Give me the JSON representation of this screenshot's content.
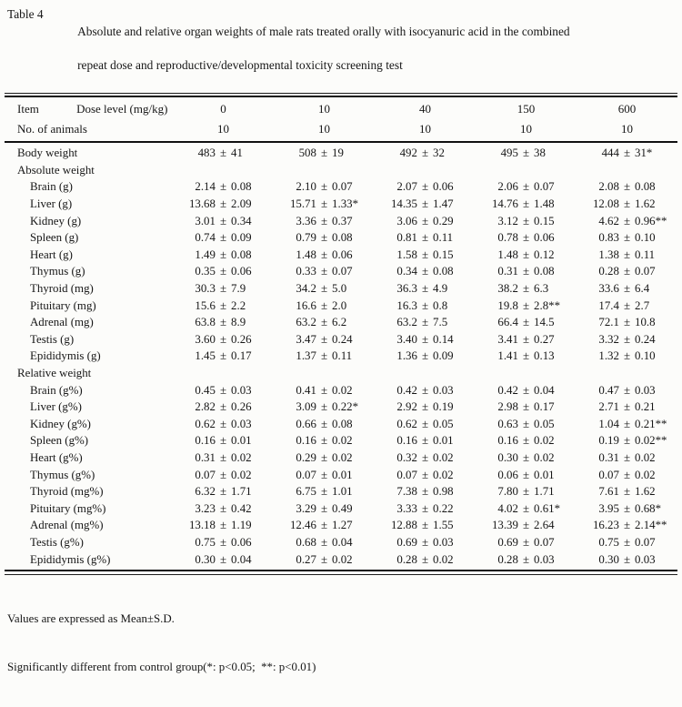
{
  "caption": {
    "label": "Table 4",
    "line1": "Absolute and relative organ weights of male rats treated orally with isocyanuric acid in the combined",
    "line2": "repeat dose and reproductive/developmental toxicity screening test"
  },
  "symbols": {
    "pm": "±"
  },
  "header": {
    "item_label": "Item",
    "dose_label": "Dose level (mg/kg)",
    "doses": [
      "0",
      "10",
      "40",
      "150",
      "600"
    ],
    "animals_label": "No. of animals",
    "animals_counts": [
      "10",
      "10",
      "10",
      "10",
      "10"
    ]
  },
  "rows": [
    {
      "label": "Body weight",
      "indent": 0,
      "values": [
        [
          "483",
          "41"
        ],
        [
          "508",
          "19"
        ],
        [
          "492",
          "32"
        ],
        [
          "495",
          "38"
        ],
        [
          "444",
          "31*"
        ]
      ]
    },
    {
      "label": "Absolute weight",
      "indent": 0,
      "section": true,
      "values": []
    },
    {
      "label": "Brain (g)",
      "indent": 1,
      "values": [
        [
          "2.14",
          "0.08"
        ],
        [
          "2.10",
          "0.07"
        ],
        [
          "2.07",
          "0.06"
        ],
        [
          "2.06",
          "0.07"
        ],
        [
          "2.08",
          "0.08"
        ]
      ]
    },
    {
      "label": "Liver (g)",
      "indent": 1,
      "values": [
        [
          "13.68",
          "2.09"
        ],
        [
          "15.71",
          "1.33*"
        ],
        [
          "14.35",
          "1.47"
        ],
        [
          "14.76",
          "1.48"
        ],
        [
          "12.08",
          "1.62"
        ]
      ]
    },
    {
      "label": "Kidney (g)",
      "indent": 1,
      "values": [
        [
          "3.01",
          "0.34"
        ],
        [
          "3.36",
          "0.37"
        ],
        [
          "3.06",
          "0.29"
        ],
        [
          "3.12",
          "0.15"
        ],
        [
          "4.62",
          "0.96**"
        ]
      ]
    },
    {
      "label": "Spleen (g)",
      "indent": 1,
      "values": [
        [
          "0.74",
          "0.09"
        ],
        [
          "0.79",
          "0.08"
        ],
        [
          "0.81",
          "0.11"
        ],
        [
          "0.78",
          "0.06"
        ],
        [
          "0.83",
          "0.10"
        ]
      ]
    },
    {
      "label": "Heart (g)",
      "indent": 1,
      "values": [
        [
          "1.49",
          "0.08"
        ],
        [
          "1.48",
          "0.06"
        ],
        [
          "1.58",
          "0.15"
        ],
        [
          "1.48",
          "0.12"
        ],
        [
          "1.38",
          "0.11"
        ]
      ]
    },
    {
      "label": "Thymus (g)",
      "indent": 1,
      "values": [
        [
          "0.35",
          "0.06"
        ],
        [
          "0.33",
          "0.07"
        ],
        [
          "0.34",
          "0.08"
        ],
        [
          "0.31",
          "0.08"
        ],
        [
          "0.28",
          "0.07"
        ]
      ]
    },
    {
      "label": "Thyroid (mg)",
      "indent": 1,
      "values": [
        [
          "30.3",
          "7.9"
        ],
        [
          "34.2",
          "5.0"
        ],
        [
          "36.3",
          "4.9"
        ],
        [
          "38.2",
          "6.3"
        ],
        [
          "33.6",
          "6.4"
        ]
      ]
    },
    {
      "label": "Pituitary (mg)",
      "indent": 1,
      "values": [
        [
          "15.6",
          "2.2"
        ],
        [
          "16.6",
          "2.0"
        ],
        [
          "16.3",
          "0.8"
        ],
        [
          "19.8",
          "2.8**"
        ],
        [
          "17.4",
          "2.7"
        ]
      ]
    },
    {
      "label": "Adrenal (mg)",
      "indent": 1,
      "values": [
        [
          "63.8",
          "8.9"
        ],
        [
          "63.2",
          "6.2"
        ],
        [
          "63.2",
          "7.5"
        ],
        [
          "66.4",
          "14.5"
        ],
        [
          "72.1",
          "10.8"
        ]
      ]
    },
    {
      "label": "Testis (g)",
      "indent": 1,
      "values": [
        [
          "3.60",
          "0.26"
        ],
        [
          "3.47",
          "0.24"
        ],
        [
          "3.40",
          "0.14"
        ],
        [
          "3.41",
          "0.27"
        ],
        [
          "3.32",
          "0.24"
        ]
      ]
    },
    {
      "label": "Epididymis (g)",
      "indent": 1,
      "values": [
        [
          "1.45",
          "0.17"
        ],
        [
          "1.37",
          "0.11"
        ],
        [
          "1.36",
          "0.09"
        ],
        [
          "1.41",
          "0.13"
        ],
        [
          "1.32",
          "0.10"
        ]
      ]
    },
    {
      "label": "Relative weight",
      "indent": 0,
      "section": true,
      "values": []
    },
    {
      "label": "Brain (g%)",
      "indent": 1,
      "values": [
        [
          "0.45",
          "0.03"
        ],
        [
          "0.41",
          "0.02"
        ],
        [
          "0.42",
          "0.03"
        ],
        [
          "0.42",
          "0.04"
        ],
        [
          "0.47",
          "0.03"
        ]
      ]
    },
    {
      "label": "Liver (g%)",
      "indent": 1,
      "values": [
        [
          "2.82",
          "0.26"
        ],
        [
          "3.09",
          "0.22*"
        ],
        [
          "2.92",
          "0.19"
        ],
        [
          "2.98",
          "0.17"
        ],
        [
          "2.71",
          "0.21"
        ]
      ]
    },
    {
      "label": "Kidney (g%)",
      "indent": 1,
      "values": [
        [
          "0.62",
          "0.03"
        ],
        [
          "0.66",
          "0.08"
        ],
        [
          "0.62",
          "0.05"
        ],
        [
          "0.63",
          "0.05"
        ],
        [
          "1.04",
          "0.21**"
        ]
      ]
    },
    {
      "label": "Spleen (g%)",
      "indent": 1,
      "values": [
        [
          "0.16",
          "0.01"
        ],
        [
          "0.16",
          "0.02"
        ],
        [
          "0.16",
          "0.01"
        ],
        [
          "0.16",
          "0.02"
        ],
        [
          "0.19",
          "0.02**"
        ]
      ]
    },
    {
      "label": "Heart (g%)",
      "indent": 1,
      "values": [
        [
          "0.31",
          "0.02"
        ],
        [
          "0.29",
          "0.02"
        ],
        [
          "0.32",
          "0.02"
        ],
        [
          "0.30",
          "0.02"
        ],
        [
          "0.31",
          "0.02"
        ]
      ]
    },
    {
      "label": "Thymus (g%)",
      "indent": 1,
      "values": [
        [
          "0.07",
          "0.02"
        ],
        [
          "0.07",
          "0.01"
        ],
        [
          "0.07",
          "0.02"
        ],
        [
          "0.06",
          "0.01"
        ],
        [
          "0.07",
          "0.02"
        ]
      ]
    },
    {
      "label": "Thyroid (mg%)",
      "indent": 1,
      "values": [
        [
          "6.32",
          "1.71"
        ],
        [
          "6.75",
          "1.01"
        ],
        [
          "7.38",
          "0.98"
        ],
        [
          "7.80",
          "1.71"
        ],
        [
          "7.61",
          "1.62"
        ]
      ]
    },
    {
      "label": "Pituitary (mg%)",
      "indent": 1,
      "values": [
        [
          "3.23",
          "0.42"
        ],
        [
          "3.29",
          "0.49"
        ],
        [
          "3.33",
          "0.22"
        ],
        [
          "4.02",
          "0.61*"
        ],
        [
          "3.95",
          "0.68*"
        ]
      ]
    },
    {
      "label": "Adrenal (mg%)",
      "indent": 1,
      "values": [
        [
          "13.18",
          "1.19"
        ],
        [
          "12.46",
          "1.27"
        ],
        [
          "12.88",
          "1.55"
        ],
        [
          "13.39",
          "2.64"
        ],
        [
          "16.23",
          "2.14**"
        ]
      ]
    },
    {
      "label": "Testis (g%)",
      "indent": 1,
      "values": [
        [
          "0.75",
          "0.06"
        ],
        [
          "0.68",
          "0.04"
        ],
        [
          "0.69",
          "0.03"
        ],
        [
          "0.69",
          "0.07"
        ],
        [
          "0.75",
          "0.07"
        ]
      ]
    },
    {
      "label": "Epididymis (g%)",
      "indent": 1,
      "values": [
        [
          "0.30",
          "0.04"
        ],
        [
          "0.27",
          "0.02"
        ],
        [
          "0.28",
          "0.02"
        ],
        [
          "0.28",
          "0.03"
        ],
        [
          "0.30",
          "0.03"
        ]
      ]
    }
  ],
  "footnotes": [
    "Values are expressed as Mean±S.D.",
    "Significantly different from control group(*: p<0.05;  **: p<0.01)"
  ]
}
